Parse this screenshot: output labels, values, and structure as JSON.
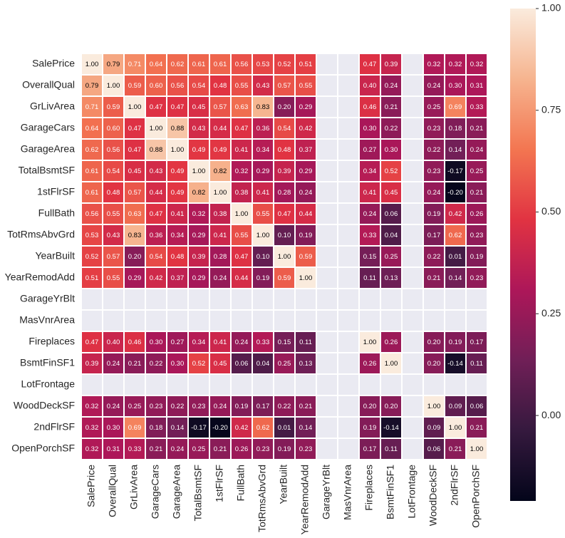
{
  "chart_data": {
    "type": "heatmap",
    "columns": [
      "SalePrice",
      "OverallQual",
      "GrLivArea",
      "GarageCars",
      "GarageArea",
      "TotalBsmtSF",
      "1stFlrSF",
      "FullBath",
      "TotRmsAbvGrd",
      "YearBuilt",
      "YearRemodAdd",
      "GarageYrBlt",
      "MasVnrArea",
      "Fireplaces",
      "BsmtFinSF1",
      "LotFrontage",
      "WoodDeckSF",
      "2ndFlrSF",
      "OpenPorchSF"
    ],
    "rows": [
      "SalePrice",
      "OverallQual",
      "GrLivArea",
      "GarageCars",
      "GarageArea",
      "TotalBsmtSF",
      "1stFlrSF",
      "FullBath",
      "TotRmsAbvGrd",
      "YearBuilt",
      "YearRemodAdd",
      "GarageYrBlt",
      "MasVnrArea",
      "Fireplaces",
      "BsmtFinSF1",
      "LotFrontage",
      "WoodDeckSF",
      "2ndFlrSF",
      "OpenPorchSF"
    ],
    "values": [
      [
        1,
        0.79,
        0.71,
        0.64,
        0.62,
        0.61,
        0.61,
        0.56,
        0.53,
        0.52,
        0.51,
        null,
        null,
        0.47,
        0.39,
        null,
        0.32,
        0.32,
        0.32
      ],
      [
        0.79,
        1,
        0.59,
        0.6,
        0.56,
        0.54,
        0.48,
        0.55,
        0.43,
        0.57,
        0.55,
        null,
        null,
        0.4,
        0.24,
        null,
        0.24,
        0.3,
        0.31
      ],
      [
        0.71,
        0.59,
        1,
        0.47,
        0.47,
        0.45,
        0.57,
        0.63,
        0.83,
        0.2,
        0.29,
        null,
        null,
        0.46,
        0.21,
        null,
        0.25,
        0.69,
        0.33
      ],
      [
        0.64,
        0.6,
        0.47,
        1,
        0.88,
        0.43,
        0.44,
        0.47,
        0.36,
        0.54,
        0.42,
        null,
        null,
        0.3,
        0.22,
        null,
        0.23,
        0.18,
        0.21
      ],
      [
        0.62,
        0.56,
        0.47,
        0.88,
        1,
        0.49,
        0.49,
        0.41,
        0.34,
        0.48,
        0.37,
        null,
        null,
        0.27,
        0.3,
        null,
        0.22,
        0.14,
        0.24
      ],
      [
        0.61,
        0.54,
        0.45,
        0.43,
        0.49,
        1,
        0.82,
        0.32,
        0.29,
        0.39,
        0.29,
        null,
        null,
        0.34,
        0.52,
        null,
        0.23,
        -0.17,
        0.25
      ],
      [
        0.61,
        0.48,
        0.57,
        0.44,
        0.49,
        0.82,
        1,
        0.38,
        0.41,
        0.28,
        0.24,
        null,
        null,
        0.41,
        0.45,
        null,
        0.24,
        -0.2,
        0.21
      ],
      [
        0.56,
        0.55,
        0.63,
        0.47,
        0.41,
        0.32,
        0.38,
        1,
        0.55,
        0.47,
        0.44,
        null,
        null,
        0.24,
        0.06,
        null,
        0.19,
        0.42,
        0.26
      ],
      [
        0.53,
        0.43,
        0.83,
        0.36,
        0.34,
        0.29,
        0.41,
        0.55,
        1,
        0.1,
        0.19,
        null,
        null,
        0.33,
        0.04,
        null,
        0.17,
        0.62,
        0.23
      ],
      [
        0.52,
        0.57,
        0.2,
        0.54,
        0.48,
        0.39,
        0.28,
        0.47,
        0.1,
        1,
        0.59,
        null,
        null,
        0.15,
        0.25,
        null,
        0.22,
        0.01,
        0.19
      ],
      [
        0.51,
        0.55,
        0.29,
        0.42,
        0.37,
        0.29,
        0.24,
        0.44,
        0.19,
        0.59,
        1,
        null,
        null,
        0.11,
        0.13,
        null,
        0.21,
        0.14,
        0.23
      ],
      [
        null,
        null,
        null,
        null,
        null,
        null,
        null,
        null,
        null,
        null,
        null,
        null,
        null,
        null,
        null,
        null,
        null,
        null,
        null
      ],
      [
        null,
        null,
        null,
        null,
        null,
        null,
        null,
        null,
        null,
        null,
        null,
        null,
        null,
        null,
        null,
        null,
        null,
        null,
        null
      ],
      [
        0.47,
        0.4,
        0.46,
        0.3,
        0.27,
        0.34,
        0.41,
        0.24,
        0.33,
        0.15,
        0.11,
        null,
        null,
        1,
        0.26,
        null,
        0.2,
        0.19,
        0.17
      ],
      [
        0.39,
        0.24,
        0.21,
        0.22,
        0.3,
        0.52,
        0.45,
        0.06,
        0.04,
        0.25,
        0.13,
        null,
        null,
        0.26,
        1,
        null,
        0.2,
        -0.14,
        0.11
      ],
      [
        null,
        null,
        null,
        null,
        null,
        null,
        null,
        null,
        null,
        null,
        null,
        null,
        null,
        null,
        null,
        null,
        null,
        null,
        null
      ],
      [
        0.32,
        0.24,
        0.25,
        0.23,
        0.22,
        0.23,
        0.24,
        0.19,
        0.17,
        0.22,
        0.21,
        null,
        null,
        0.2,
        0.2,
        null,
        1,
        0.09,
        0.06
      ],
      [
        0.32,
        0.3,
        0.69,
        0.18,
        0.14,
        -0.17,
        -0.2,
        0.42,
        0.62,
        0.01,
        0.14,
        null,
        null,
        0.19,
        -0.14,
        null,
        0.09,
        1,
        0.21
      ],
      [
        0.32,
        0.31,
        0.33,
        0.21,
        0.24,
        0.25,
        0.21,
        0.26,
        0.23,
        0.19,
        0.23,
        null,
        null,
        0.17,
        0.11,
        null,
        0.06,
        0.21,
        1
      ]
    ],
    "value_labels": [
      [
        "1.00",
        "0.79",
        "0.71",
        "0.64",
        "0.62",
        "0.61",
        "0.61",
        "0.56",
        "0.53",
        "0.52",
        "0.51",
        null,
        null,
        "0.47",
        "0.39",
        null,
        "0.32",
        "0.32",
        "0.32"
      ],
      [
        "0.79",
        "1.00",
        "0.59",
        "0.60",
        "0.56",
        "0.54",
        "0.48",
        "0.55",
        "0.43",
        "0.57",
        "0.55",
        null,
        null,
        "0.40",
        "0.24",
        null,
        "0.24",
        "0.30",
        "0.31"
      ],
      [
        "0.71",
        "0.59",
        "1.00",
        "0.47",
        "0.47",
        "0.45",
        "0.57",
        "0.63",
        "0.83",
        "0.20",
        "0.29",
        null,
        null,
        "0.46",
        "0.21",
        null,
        "0.25",
        "0.69",
        "0.33"
      ],
      [
        "0.64",
        "0.60",
        "0.47",
        "1.00",
        "0.88",
        "0.43",
        "0.44",
        "0.47",
        "0.36",
        "0.54",
        "0.42",
        null,
        null,
        "0.30",
        "0.22",
        null,
        "0.23",
        "0.18",
        "0.21"
      ],
      [
        "0.62",
        "0.56",
        "0.47",
        "0.88",
        "1.00",
        "0.49",
        "0.49",
        "0.41",
        "0.34",
        "0.48",
        "0.37",
        null,
        null,
        "0.27",
        "0.30",
        null,
        "0.22",
        "0.14",
        "0.24"
      ],
      [
        "0.61",
        "0.54",
        "0.45",
        "0.43",
        "0.49",
        "1.00",
        "0.82",
        "0.32",
        "0.29",
        "0.39",
        "0.29",
        null,
        null,
        "0.34",
        "0.52",
        null,
        "0.23",
        "-0.17",
        "0.25"
      ],
      [
        "0.61",
        "0.48",
        "0.57",
        "0.44",
        "0.49",
        "0.82",
        "1.00",
        "0.38",
        "0.41",
        "0.28",
        "0.24",
        null,
        null,
        "0.41",
        "0.45",
        null,
        "0.24",
        "-0.20",
        "0.21"
      ],
      [
        "0.56",
        "0.55",
        "0.63",
        "0.47",
        "0.41",
        "0.32",
        "0.38",
        "1.00",
        "0.55",
        "0.47",
        "0.44",
        null,
        null,
        "0.24",
        "0.06",
        null,
        "0.19",
        "0.42",
        "0.26"
      ],
      [
        "0.53",
        "0.43",
        "0.83",
        "0.36",
        "0.34",
        "0.29",
        "0.41",
        "0.55",
        "1.00",
        "0.10",
        "0.19",
        null,
        null,
        "0.33",
        "0.04",
        null,
        "0.17",
        "0.62",
        "0.23"
      ],
      [
        "0.52",
        "0.57",
        "0.20",
        "0.54",
        "0.48",
        "0.39",
        "0.28",
        "0.47",
        "0.10",
        "1.00",
        "0.59",
        null,
        null,
        "0.15",
        "0.25",
        null,
        "0.22",
        "0.01",
        "0.19"
      ],
      [
        "0.51",
        "0.55",
        "0.29",
        "0.42",
        "0.37",
        "0.29",
        "0.24",
        "0.44",
        "0.19",
        "0.59",
        "1.00",
        null,
        null,
        "0.11",
        "0.13",
        null,
        "0.21",
        "0.14",
        "0.23"
      ],
      [
        null,
        null,
        null,
        null,
        null,
        null,
        null,
        null,
        null,
        null,
        null,
        null,
        null,
        null,
        null,
        null,
        null,
        null,
        null
      ],
      [
        null,
        null,
        null,
        null,
        null,
        null,
        null,
        null,
        null,
        null,
        null,
        null,
        null,
        null,
        null,
        null,
        null,
        null,
        null
      ],
      [
        "0.47",
        "0.40",
        "0.46",
        "0.30",
        "0.27",
        "0.34",
        "0.41",
        "0.24",
        "0.33",
        "0.15",
        "0.11",
        null,
        null,
        "1.00",
        "0.26",
        null,
        "0.20",
        "0.19",
        "0.17"
      ],
      [
        "0.39",
        "0.24",
        "0.21",
        "0.22",
        "0.30",
        "0.52",
        "0.45",
        "0.06",
        "0.04",
        "0.25",
        "0.13",
        null,
        null,
        "0.26",
        "1.00",
        null,
        "0.20",
        "-0.14",
        "0.11"
      ],
      [
        null,
        null,
        null,
        null,
        null,
        null,
        null,
        null,
        null,
        null,
        null,
        null,
        null,
        null,
        null,
        null,
        null,
        null,
        null
      ],
      [
        "0.32",
        "0.24",
        "0.25",
        "0.23",
        "0.22",
        "0.23",
        "0.24",
        "0.19",
        "0.17",
        "0.22",
        "0.21",
        null,
        null,
        "0.20",
        "0.20",
        null,
        "1.00",
        "0.09",
        "0.06"
      ],
      [
        "0.32",
        "0.30",
        "0.69",
        "0.18",
        "0.14",
        "-0.17",
        "-0.20",
        "0.42",
        "0.62",
        "0.01",
        "0.14",
        null,
        null,
        "0.19",
        "-0.14",
        null,
        "0.09",
        "1.00",
        "0.21"
      ],
      [
        "0.32",
        "0.31",
        "0.33",
        "0.21",
        "0.24",
        "0.25",
        "0.21",
        "0.26",
        "0.23",
        "0.19",
        "0.23",
        null,
        null,
        "0.17",
        "0.11",
        null,
        "0.06",
        "0.21",
        "1.00"
      ]
    ],
    "colormap": [
      "#03051a",
      "#35193e",
      "#701f57",
      "#ad1759",
      "#e13342",
      "#f37651",
      "#f6b48f",
      "#faebdd"
    ],
    "missing_color": "#eaeaf2",
    "colorbar": {
      "lim": [
        -0.21,
        1
      ],
      "ticks": [
        {
          "value": 0,
          "label": "0.00"
        },
        0.25,
        {
          "value": 0.5,
          "label": "0.50"
        },
        0.75,
        {
          "value": 1,
          "label": "1.00"
        }
      ]
    }
  }
}
